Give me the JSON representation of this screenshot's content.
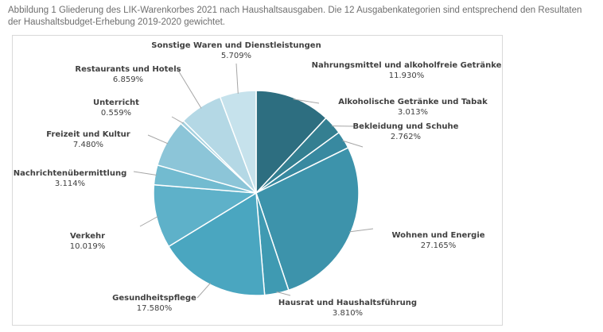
{
  "caption": "Abbildung 1 Gliederung des LIK-Warenkorbes 2021 nach Haushaltsausgaben. Die 12 Ausgabenkategorien sind entsprechend den Resultaten der Haushaltsbudget-Erhebung 2019-2020 gewichtet.",
  "chart_data": {
    "type": "pie",
    "title": "",
    "categories": [
      "Nahrungsmittel und alkoholfreie Getränke",
      "Alkoholische Getränke und Tabak",
      "Bekleidung und Schuhe",
      "Wohnen und Energie",
      "Hausrat und Haushaltsführung",
      "Gesundheitspflege",
      "Verkehr",
      "Nachrichtenübermittlung",
      "Freizeit und Kultur",
      "Unterricht",
      "Restaurants und Hotels",
      "Sonstige Waren und Dienstleistungen"
    ],
    "values": [
      11.93,
      3.013,
      2.762,
      27.165,
      3.81,
      17.58,
      10.019,
      3.114,
      7.48,
      0.559,
      6.859,
      5.709
    ],
    "value_labels": [
      "11.930%",
      "3.013%",
      "2.762%",
      "27.165%",
      "3.810%",
      "17.580%",
      "10.019%",
      "3.114%",
      "7.480%",
      "0.559%",
      "6.859%",
      "5.709%"
    ],
    "colors": [
      "#2d6e80",
      "#347f91",
      "#3889a0",
      "#3d93ab",
      "#3f9ab2",
      "#4aa6c0",
      "#5eb1c9",
      "#72bbd0",
      "#8cc5d8",
      "#a2d0df",
      "#b4d8e5",
      "#c6e2ec"
    ],
    "legend": "none"
  }
}
